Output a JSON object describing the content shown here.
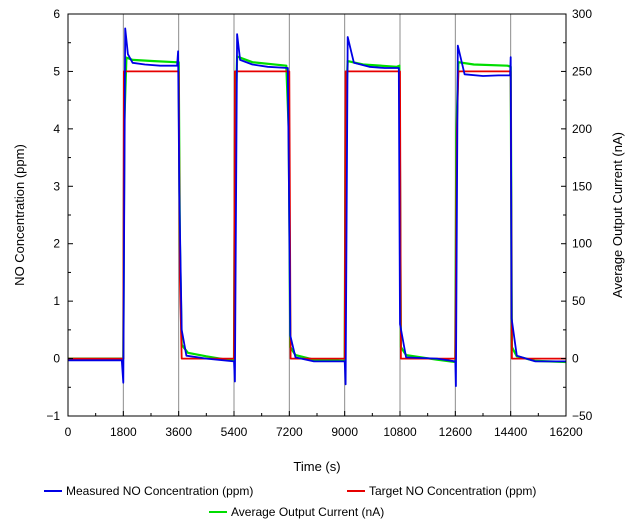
{
  "chart_data": {
    "type": "line",
    "xlabel": "Time (s)",
    "ylabel_left": "NO Concentration (ppm)",
    "ylabel_right": "Average Output Current (nA)",
    "xlim": [
      0,
      16200
    ],
    "ylim_left": [
      -1,
      6
    ],
    "ylim_right": [
      -50,
      300
    ],
    "x_ticks": [
      "0",
      "1800",
      "3600",
      "5400",
      "7200",
      "9000",
      "10800",
      "12600",
      "14400",
      "16200"
    ],
    "y_left_ticks": [
      "−1",
      "0",
      "1",
      "2",
      "3",
      "4",
      "5",
      "6"
    ],
    "y_right_ticks": [
      "−50",
      "0",
      "50",
      "100",
      "150",
      "200",
      "250",
      "300"
    ],
    "vertical_gridlines_x": [
      1800,
      3600,
      5400,
      7200,
      9000,
      10800,
      12600,
      14400
    ],
    "legend_position": "bottom",
    "series": [
      {
        "name": "Measured NO Concentration (ppm)",
        "color": "#0000e6",
        "axis": "left",
        "points": [
          [
            0,
            -0.03
          ],
          [
            1750,
            -0.03
          ],
          [
            1800,
            -0.42
          ],
          [
            1860,
            5.75
          ],
          [
            1950,
            5.3
          ],
          [
            2100,
            5.15
          ],
          [
            2500,
            5.12
          ],
          [
            3000,
            5.1
          ],
          [
            3550,
            5.1
          ],
          [
            3580,
            5.35
          ],
          [
            3620,
            2.9
          ],
          [
            3700,
            0.5
          ],
          [
            3850,
            0.05
          ],
          [
            4500,
            0.0
          ],
          [
            5400,
            -0.05
          ],
          [
            5430,
            -0.4
          ],
          [
            5500,
            5.65
          ],
          [
            5600,
            5.2
          ],
          [
            6000,
            5.12
          ],
          [
            6500,
            5.08
          ],
          [
            7150,
            5.06
          ],
          [
            7180,
            3.45
          ],
          [
            7230,
            0.4
          ],
          [
            7400,
            0.02
          ],
          [
            8000,
            -0.05
          ],
          [
            9000,
            -0.05
          ],
          [
            9030,
            -0.45
          ],
          [
            9100,
            5.6
          ],
          [
            9300,
            5.15
          ],
          [
            9800,
            5.08
          ],
          [
            10300,
            5.06
          ],
          [
            10760,
            5.06
          ],
          [
            10800,
            0.6
          ],
          [
            11000,
            0.02
          ],
          [
            12000,
            0.0
          ],
          [
            12600,
            -0.05
          ],
          [
            12620,
            -0.48
          ],
          [
            12680,
            5.45
          ],
          [
            12900,
            4.95
          ],
          [
            13500,
            4.92
          ],
          [
            14000,
            4.93
          ],
          [
            14380,
            4.93
          ],
          [
            14400,
            5.25
          ],
          [
            14430,
            0.7
          ],
          [
            14600,
            0.05
          ],
          [
            15200,
            -0.05
          ],
          [
            16200,
            -0.05
          ]
        ]
      },
      {
        "name": "Target NO Concentration (ppm)",
        "color": "#e60000",
        "axis": "left",
        "points": [
          [
            0,
            0
          ],
          [
            1800,
            0
          ],
          [
            1820,
            5.0
          ],
          [
            3600,
            5.0
          ],
          [
            3640,
            1.4
          ],
          [
            3700,
            0
          ],
          [
            5400,
            0
          ],
          [
            5430,
            5.0
          ],
          [
            7200,
            5.0
          ],
          [
            7240,
            0
          ],
          [
            9000,
            0
          ],
          [
            9030,
            5.0
          ],
          [
            10800,
            5.0
          ],
          [
            10830,
            0
          ],
          [
            12600,
            0
          ],
          [
            12650,
            4.0
          ],
          [
            12700,
            5.0
          ],
          [
            14400,
            5.0
          ],
          [
            14440,
            0
          ],
          [
            16200,
            0
          ]
        ]
      },
      {
        "name": "Average Output Current (nA)",
        "color": "#00dd00",
        "axis": "right",
        "points": [
          [
            0,
            0
          ],
          [
            1800,
            0
          ],
          [
            1830,
            205
          ],
          [
            1900,
            262
          ],
          [
            2100,
            260
          ],
          [
            2800,
            259
          ],
          [
            3500,
            258
          ],
          [
            3600,
            258
          ],
          [
            3640,
            100
          ],
          [
            3700,
            12
          ],
          [
            3900,
            5
          ],
          [
            4500,
            2
          ],
          [
            5400,
            -2
          ],
          [
            5430,
            190
          ],
          [
            5500,
            263
          ],
          [
            6000,
            258
          ],
          [
            7100,
            255
          ],
          [
            7180,
            200
          ],
          [
            7230,
            10
          ],
          [
            7400,
            3
          ],
          [
            8000,
            -1
          ],
          [
            9000,
            -2
          ],
          [
            9030,
            215
          ],
          [
            9100,
            259
          ],
          [
            9600,
            256
          ],
          [
            10700,
            254
          ],
          [
            10780,
            255
          ],
          [
            10830,
            10
          ],
          [
            11000,
            3
          ],
          [
            12000,
            -1
          ],
          [
            12600,
            -3
          ],
          [
            12630,
            195
          ],
          [
            12700,
            258
          ],
          [
            13200,
            256
          ],
          [
            14300,
            255
          ],
          [
            14400,
            254
          ],
          [
            14440,
            10
          ],
          [
            14600,
            2
          ],
          [
            15200,
            -2
          ],
          [
            16200,
            -3
          ]
        ]
      }
    ]
  }
}
